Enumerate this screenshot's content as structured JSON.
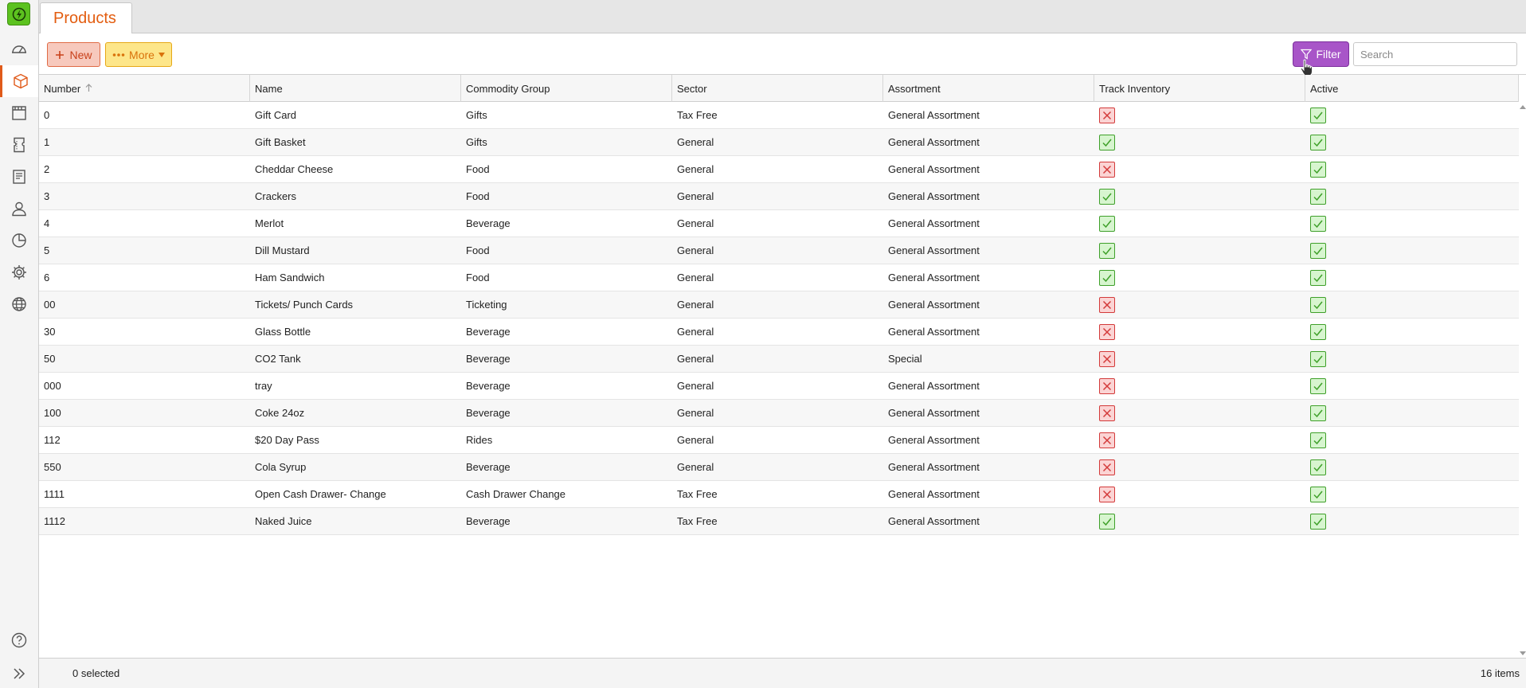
{
  "tab": {
    "title": "Products"
  },
  "toolbar": {
    "new_label": "New",
    "more_label": "More",
    "filter_label": "Filter",
    "search_placeholder": "Search"
  },
  "colors": {
    "accent": "#e35d10",
    "filter": "#a855c8",
    "logo": "#5cc21f",
    "check_yes": "#3fa02a",
    "check_no": "#d33a3a"
  },
  "sidebar": {
    "items": [
      {
        "icon": "dashboard-gauge-icon"
      },
      {
        "icon": "box-product-icon",
        "active": true
      },
      {
        "icon": "film-strip-icon"
      },
      {
        "icon": "ticket-icon"
      },
      {
        "icon": "receipt-icon"
      },
      {
        "icon": "user-icon"
      },
      {
        "icon": "pie-chart-icon"
      },
      {
        "icon": "gear-icon"
      },
      {
        "icon": "globe-icon"
      }
    ],
    "bottom": [
      {
        "icon": "help-icon"
      },
      {
        "icon": "expand-chevrons-icon"
      }
    ]
  },
  "table": {
    "columns": [
      "Number",
      "Name",
      "Commodity Group",
      "Sector",
      "Assortment",
      "Track Inventory",
      "Active"
    ],
    "sort_column": "Number",
    "rows": [
      {
        "number": "0",
        "name": "Gift Card",
        "group": "Gifts",
        "sector": "Tax Free",
        "assortment": "General Assortment",
        "track": false,
        "active": true
      },
      {
        "number": "1",
        "name": "Gift Basket",
        "group": "Gifts",
        "sector": "General",
        "assortment": "General Assortment",
        "track": true,
        "active": true
      },
      {
        "number": "2",
        "name": "Cheddar Cheese",
        "group": "Food",
        "sector": "General",
        "assortment": "General Assortment",
        "track": false,
        "active": true
      },
      {
        "number": "3",
        "name": "Crackers",
        "group": "Food",
        "sector": "General",
        "assortment": "General Assortment",
        "track": true,
        "active": true
      },
      {
        "number": "4",
        "name": "Merlot",
        "group": "Beverage",
        "sector": "General",
        "assortment": "General Assortment",
        "track": true,
        "active": true
      },
      {
        "number": "5",
        "name": "Dill Mustard",
        "group": "Food",
        "sector": "General",
        "assortment": "General Assortment",
        "track": true,
        "active": true
      },
      {
        "number": "6",
        "name": "Ham Sandwich",
        "group": "Food",
        "sector": "General",
        "assortment": "General Assortment",
        "track": true,
        "active": true
      },
      {
        "number": "00",
        "name": "Tickets/ Punch Cards",
        "group": "Ticketing",
        "sector": "General",
        "assortment": "General Assortment",
        "track": false,
        "active": true
      },
      {
        "number": "30",
        "name": "Glass Bottle",
        "group": "Beverage",
        "sector": "General",
        "assortment": "General Assortment",
        "track": false,
        "active": true
      },
      {
        "number": "50",
        "name": "CO2 Tank",
        "group": "Beverage",
        "sector": "General",
        "assortment": "Special",
        "track": false,
        "active": true
      },
      {
        "number": "000",
        "name": "tray",
        "group": "Beverage",
        "sector": "General",
        "assortment": "General Assortment",
        "track": false,
        "active": true
      },
      {
        "number": "100",
        "name": "Coke 24oz",
        "group": "Beverage",
        "sector": "General",
        "assortment": "General Assortment",
        "track": false,
        "active": true
      },
      {
        "number": "112",
        "name": "$20 Day Pass",
        "group": "Rides",
        "sector": "General",
        "assortment": "General Assortment",
        "track": false,
        "active": true
      },
      {
        "number": "550",
        "name": "Cola Syrup",
        "group": "Beverage",
        "sector": "General",
        "assortment": "General Assortment",
        "track": false,
        "active": true
      },
      {
        "number": "1111",
        "name": "Open Cash Drawer- Change",
        "group": "Cash Drawer Change",
        "sector": "Tax Free",
        "assortment": "General Assortment",
        "track": false,
        "active": true
      },
      {
        "number": "1112",
        "name": "Naked Juice",
        "group": "Beverage",
        "sector": "Tax Free",
        "assortment": "General Assortment",
        "track": true,
        "active": true
      }
    ]
  },
  "footer": {
    "selected": "0 selected",
    "items": "16 items"
  }
}
